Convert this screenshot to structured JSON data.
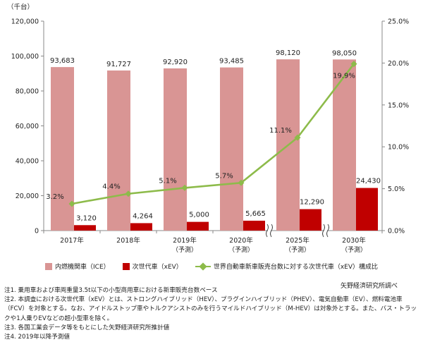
{
  "chart_data": {
    "type": "bar",
    "categories": [
      "2017年",
      "2018年",
      "2019年",
      "2020年",
      "2025年",
      "2030年"
    ],
    "category_sublabels": [
      "",
      "",
      "（予測）",
      "（予測）",
      "（予測）",
      "（予測）"
    ],
    "left_axis": {
      "unit_label": "（千台）",
      "ylim": [
        0,
        120000
      ],
      "ticks": [
        "0",
        "20,000",
        "40,000",
        "60,000",
        "80,000",
        "100,000",
        "120,000"
      ]
    },
    "right_axis": {
      "ylim": [
        0,
        25
      ],
      "ticks": [
        "0.0%",
        "5.0%",
        "10.0%",
        "15.0%",
        "20.0%",
        "25.0%"
      ]
    },
    "series": [
      {
        "name": "内燃機関車（ICE）",
        "type": "bar",
        "color": "#d99594",
        "values": [
          93683,
          91727,
          92920,
          93485,
          98120,
          98050
        ],
        "labels": [
          "93,683",
          "91,727",
          "92,920",
          "93,485",
          "98,120",
          "98,050"
        ]
      },
      {
        "name": "次世代車（xEV）",
        "type": "bar",
        "color": "#c00000",
        "values": [
          3120,
          4264,
          5000,
          5665,
          12290,
          24430
        ],
        "labels": [
          "3,120",
          "4,264",
          "5,000",
          "5,665",
          "12,290",
          "24,430"
        ]
      },
      {
        "name": "世界自動車新車販売台数に対する次世代車（xEV）構成比",
        "type": "line",
        "axis": "right",
        "color": "#8dbb4a",
        "values": [
          3.2,
          4.4,
          5.1,
          5.7,
          11.1,
          19.9
        ],
        "labels": [
          "3.2%",
          "4.4%",
          "5.1%",
          "5.7%",
          "11.1%",
          "19.9%"
        ]
      }
    ],
    "axis_breaks": [
      "2020年",
      "2025年"
    ],
    "legend_position": "bottom",
    "grid": false
  },
  "source": "矢野経済研究所調べ",
  "notes": [
    "注1. 乗用車および車両重量3.5t以下の小型商用車における新車販売台数ベース",
    "注2. 本調査における次世代車（xEV）とは、ストロングハイブリッド（HEV）、プラグインハイブリッド（PHEV）、電気自動車（EV）、燃料電池車（FCV）を対象とする。なお、アイドルストップ車やトルクアシストのみを行うマイルドハイブリッド（M-HEV）は対象外とする。また、バス・トラックや1人乗りEVなどの超小型車を除く。",
    "注3. 各国工業会データ等をもとにした矢野経済研究所推計値",
    "注4. 2019年以降予測値"
  ]
}
